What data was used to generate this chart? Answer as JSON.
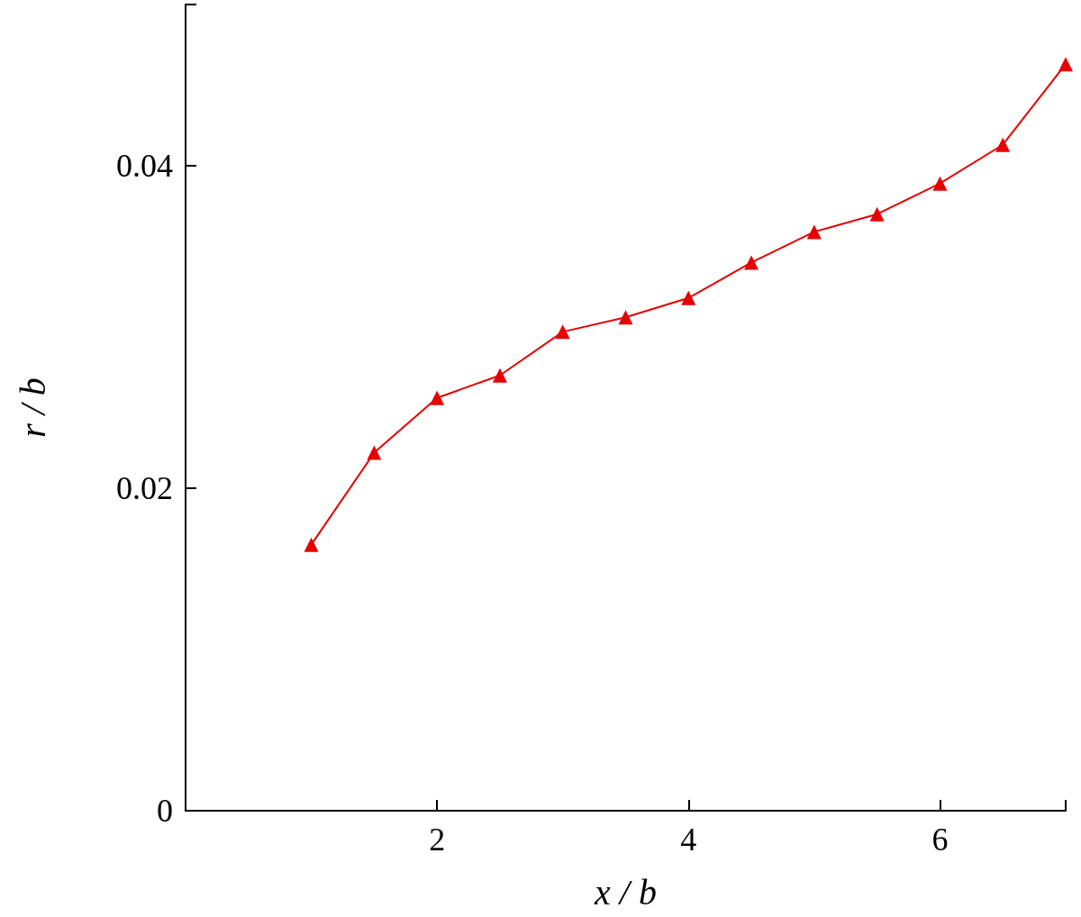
{
  "chart_data": {
    "type": "line",
    "xlabel": "x / b",
    "ylabel": "r / b",
    "x": [
      1,
      1.5,
      2,
      2.5,
      3,
      3.5,
      4,
      4.5,
      5,
      5.5,
      6,
      6.5,
      7
    ],
    "series": [
      {
        "color": "#e60000",
        "values": [
          0.0165,
          0.0222,
          0.0256,
          0.027,
          0.0297,
          0.0306,
          0.0318,
          0.034,
          0.0359,
          0.037,
          0.0389,
          0.0413,
          0.0463
        ]
      }
    ],
    "xlim": [
      0,
      7
    ],
    "xticks": [
      2,
      4,
      6,
      {
        "value": 7,
        "label": null
      }
    ],
    "ylim": [
      0,
      0.05
    ],
    "yticks": [
      0,
      0.02,
      0.04,
      {
        "value": 0.05,
        "label": null
      }
    ],
    "grid": false,
    "marker": "triangle",
    "line_style": "solid"
  }
}
